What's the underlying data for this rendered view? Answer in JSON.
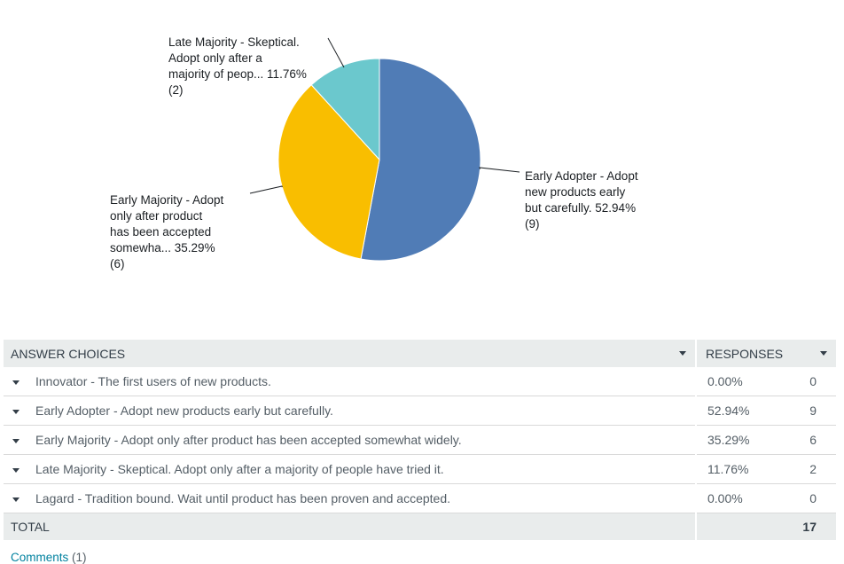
{
  "chart_data": {
    "type": "pie",
    "slices": [
      {
        "label": "Early Adopter - Adopt new products early but carefully.",
        "display_lines": [
          "Early Adopter - Adopt",
          "new products early",
          "but carefully. 52.94%",
          "(9)"
        ],
        "percent": 52.94,
        "count": 9,
        "color": "#507cb6"
      },
      {
        "label": "Early Majority - Adopt only after product has been accepted somewhat widely.",
        "display_lines": [
          "Early Majority - Adopt",
          "only after product",
          "has been accepted",
          "somewha... 35.29%",
          "(6)"
        ],
        "percent": 35.29,
        "count": 6,
        "color": "#f9be00"
      },
      {
        "label": "Late Majority - Skeptical. Adopt only after a majority of people have tried it.",
        "display_lines": [
          "Late Majority - Skeptical.",
          "Adopt only after a",
          "majority of peop... 11.76%",
          "(2)"
        ],
        "percent": 11.76,
        "count": 2,
        "color": "#6bc8cd"
      }
    ],
    "start": "12 o'clock",
    "direction": "clockwise"
  },
  "table": {
    "header": {
      "answer_choices": "ANSWER CHOICES",
      "responses": "RESPONSES"
    },
    "rows": [
      {
        "choice": "Innovator - The first users of new products.",
        "percent": "0.00%",
        "count": "0"
      },
      {
        "choice": "Early Adopter - Adopt new products early but carefully.",
        "percent": "52.94%",
        "count": "9"
      },
      {
        "choice": "Early Majority - Adopt only after product has been accepted somewhat widely.",
        "percent": "35.29%",
        "count": "6"
      },
      {
        "choice": "Late Majority - Skeptical. Adopt only after a majority of people have tried it.",
        "percent": "11.76%",
        "count": "2"
      },
      {
        "choice": "Lagard - Tradition bound. Wait until product has been proven and accepted.",
        "percent": "0.00%",
        "count": "0"
      }
    ],
    "total_label": "TOTAL",
    "total_value": "17"
  },
  "comments": {
    "link": "Comments",
    "count": "(1)"
  }
}
